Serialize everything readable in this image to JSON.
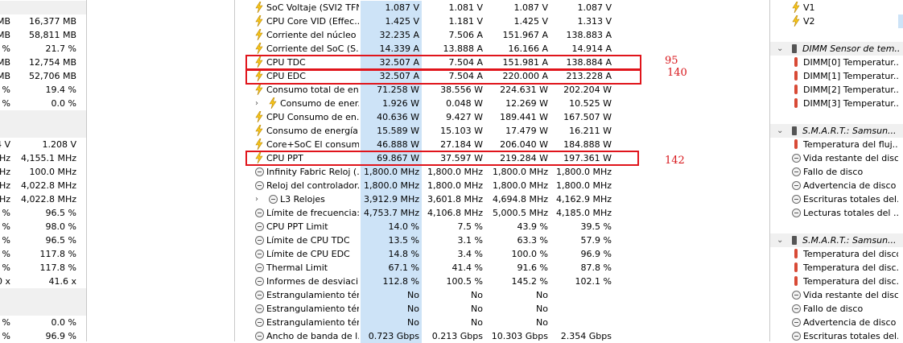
{
  "left_panel": {
    "rows": [
      {
        "a": "",
        "b": ""
      },
      {
        "a": "MB",
        "b": "16,377 MB"
      },
      {
        "a": "MB",
        "b": "58,811 MB"
      },
      {
        "a": "2 %",
        "b": "21.7 %"
      },
      {
        "a": "MB",
        "b": "12,754 MB"
      },
      {
        "a": "MB",
        "b": "52,706 MB"
      },
      {
        "a": "2 %",
        "b": "19.4 %"
      },
      {
        "a": "0 %",
        "b": "0.0 %"
      },
      {
        "a": "",
        "b": ""
      },
      {
        "a": "",
        "b": ""
      },
      {
        "a": "4 V",
        "b": "1.208 V"
      },
      {
        "a": "MHz",
        "b": "4,155.1 MHz"
      },
      {
        "a": "MHz",
        "b": "100.0 MHz"
      },
      {
        "a": "MHz",
        "b": "4,022.8 MHz"
      },
      {
        "a": "MHz",
        "b": "4,022.8 MHz"
      },
      {
        "a": "9 %",
        "b": "96.5 %"
      },
      {
        "a": "9 %",
        "b": "98.0 %"
      },
      {
        "a": "9 %",
        "b": "96.5 %"
      },
      {
        "a": "8 %",
        "b": "117.8 %"
      },
      {
        "a": "8 %",
        "b": "117.8 %"
      },
      {
        "a": "0 x",
        "b": "41.6 x"
      },
      {
        "a": "",
        "b": ""
      },
      {
        "a": "",
        "b": ""
      },
      {
        "a": "9 %",
        "b": "0.0 %"
      },
      {
        "a": "9 %",
        "b": "96.9 %"
      }
    ]
  },
  "sensors": [
    {
      "icon": "bolt",
      "label": "SoC Voltaje (SVI2 TFN)",
      "cur": "1.087 V",
      "min": "1.081 V",
      "max": "1.087 V",
      "avg": "1.087 V"
    },
    {
      "icon": "bolt",
      "label": "CPU Core VID (Effec...",
      "cur": "1.425 V",
      "min": "1.181 V",
      "max": "1.425 V",
      "avg": "1.313 V"
    },
    {
      "icon": "bolt",
      "label": "Corriente del núcleo ...",
      "cur": "32.235 A",
      "min": "7.506 A",
      "max": "151.967 A",
      "avg": "138.883 A"
    },
    {
      "icon": "bolt",
      "label": "Corriente del SoC (S...",
      "cur": "14.339 A",
      "min": "13.888 A",
      "max": "16.166 A",
      "avg": "14.914 A"
    },
    {
      "icon": "bolt",
      "label": "CPU TDC",
      "cur": "32.507 A",
      "min": "7.504 A",
      "max": "151.981 A",
      "avg": "138.884 A"
    },
    {
      "icon": "bolt",
      "label": "CPU EDC",
      "cur": "32.507 A",
      "min": "7.504 A",
      "max": "220.000 A",
      "avg": "213.228 A"
    },
    {
      "icon": "bolt",
      "label": "Consumo total de en...",
      "cur": "71.258 W",
      "min": "38.556 W",
      "max": "224.631 W",
      "avg": "202.204 W"
    },
    {
      "icon": "bolt",
      "label": "Consumo de ener...",
      "cur": "1.926 W",
      "min": "0.048 W",
      "max": "12.269 W",
      "avg": "10.525 W",
      "expand": true
    },
    {
      "icon": "bolt",
      "label": "CPU Consumo de en...",
      "cur": "40.636 W",
      "min": "9.427 W",
      "max": "189.441 W",
      "avg": "167.507 W"
    },
    {
      "icon": "bolt",
      "label": "Consumo de energía ...",
      "cur": "15.589 W",
      "min": "15.103 W",
      "max": "17.479 W",
      "avg": "16.211 W"
    },
    {
      "icon": "bolt",
      "label": "Core+SoC El consum...",
      "cur": "46.888 W",
      "min": "27.184 W",
      "max": "206.040 W",
      "avg": "184.888 W"
    },
    {
      "icon": "bolt",
      "label": "CPU PPT",
      "cur": "69.867 W",
      "min": "37.597 W",
      "max": "219.284 W",
      "avg": "197.361 W"
    },
    {
      "icon": "clock",
      "label": "Infinity Fabric Reloj (...",
      "cur": "1,800.0 MHz",
      "min": "1,800.0 MHz",
      "max": "1,800.0 MHz",
      "avg": "1,800.0 MHz"
    },
    {
      "icon": "clock",
      "label": "Reloj del controlador...",
      "cur": "1,800.0 MHz",
      "min": "1,800.0 MHz",
      "max": "1,800.0 MHz",
      "avg": "1,800.0 MHz"
    },
    {
      "icon": "clock",
      "label": "L3 Relojes",
      "cur": "3,912.9 MHz",
      "min": "3,601.8 MHz",
      "max": "4,694.8 MHz",
      "avg": "4,162.9 MHz",
      "expand": true
    },
    {
      "icon": "clock",
      "label": "Límite de frecuencia:...",
      "cur": "4,753.7 MHz",
      "min": "4,106.8 MHz",
      "max": "5,000.5 MHz",
      "avg": "4,185.0 MHz"
    },
    {
      "icon": "clock",
      "label": "CPU PPT Limit",
      "cur": "14.0 %",
      "min": "7.5 %",
      "max": "43.9 %",
      "avg": "39.5 %"
    },
    {
      "icon": "clock",
      "label": "Límite de CPU TDC",
      "cur": "13.5 %",
      "min": "3.1 %",
      "max": "63.3 %",
      "avg": "57.9 %"
    },
    {
      "icon": "clock",
      "label": "Límite de CPU EDC",
      "cur": "14.8 %",
      "min": "3.4 %",
      "max": "100.0 %",
      "avg": "96.9 %"
    },
    {
      "icon": "clock",
      "label": "Thermal Limit",
      "cur": "67.1 %",
      "min": "41.4 %",
      "max": "91.6 %",
      "avg": "87.8 %"
    },
    {
      "icon": "clock",
      "label": "Informes de desviaci...",
      "cur": "112.8 %",
      "min": "100.5 %",
      "max": "145.2 %",
      "avg": "102.1 %"
    },
    {
      "icon": "clock",
      "label": "Estrangulamiento tér...",
      "cur": "No",
      "min": "No",
      "max": "No",
      "avg": ""
    },
    {
      "icon": "clock",
      "label": "Estrangulamiento tér...",
      "cur": "No",
      "min": "No",
      "max": "No",
      "avg": ""
    },
    {
      "icon": "clock",
      "label": "Estrangulamiento tér...",
      "cur": "No",
      "min": "No",
      "max": "No",
      "avg": ""
    },
    {
      "icon": "clock",
      "label": "Ancho de banda de l...",
      "cur": "0.723 Gbps",
      "min": "0.213 Gbps",
      "max": "10.303 Gbps",
      "avg": "2.354 Gbps"
    }
  ],
  "annotations": {
    "tdc": "95",
    "edc": "140",
    "ppt": "142"
  },
  "right_panel": [
    {
      "type": "item",
      "icon": "bolt",
      "label": "V1"
    },
    {
      "type": "item",
      "icon": "bolt",
      "label": "V2",
      "hl": true
    },
    {
      "type": "blank"
    },
    {
      "type": "group",
      "label": "DIMM Sensor de tem..."
    },
    {
      "type": "item",
      "icon": "therm",
      "label": "DIMM[0] Temperatur..."
    },
    {
      "type": "item",
      "icon": "therm",
      "label": "DIMM[1] Temperatur..."
    },
    {
      "type": "item",
      "icon": "therm",
      "label": "DIMM[2] Temperatur..."
    },
    {
      "type": "item",
      "icon": "therm",
      "label": "DIMM[3] Temperatur..."
    },
    {
      "type": "blank"
    },
    {
      "type": "group",
      "label": "S.M.A.R.T.: Samsun..."
    },
    {
      "type": "item",
      "icon": "therm",
      "label": "Temperatura del fluj..."
    },
    {
      "type": "item",
      "icon": "clock",
      "label": "Vida restante del disco"
    },
    {
      "type": "item",
      "icon": "clock",
      "label": "Fallo de disco"
    },
    {
      "type": "item",
      "icon": "clock",
      "label": "Advertencia de disco"
    },
    {
      "type": "item",
      "icon": "clock",
      "label": "Escrituras totales del..."
    },
    {
      "type": "item",
      "icon": "clock",
      "label": "Lecturas totales del ..."
    },
    {
      "type": "blank"
    },
    {
      "type": "group",
      "label": "S.M.A.R.T.: Samsun..."
    },
    {
      "type": "item",
      "icon": "therm",
      "label": "Temperatura del disco"
    },
    {
      "type": "item",
      "icon": "therm",
      "label": "Temperatura del disc..."
    },
    {
      "type": "item",
      "icon": "therm",
      "label": "Temperatura del disc..."
    },
    {
      "type": "item",
      "icon": "clock",
      "label": "Vida restante del disco"
    },
    {
      "type": "item",
      "icon": "clock",
      "label": "Fallo de disco"
    },
    {
      "type": "item",
      "icon": "clock",
      "label": "Advertencia de disco"
    },
    {
      "type": "item",
      "icon": "clock",
      "label": "Escrituras totales del..."
    }
  ]
}
